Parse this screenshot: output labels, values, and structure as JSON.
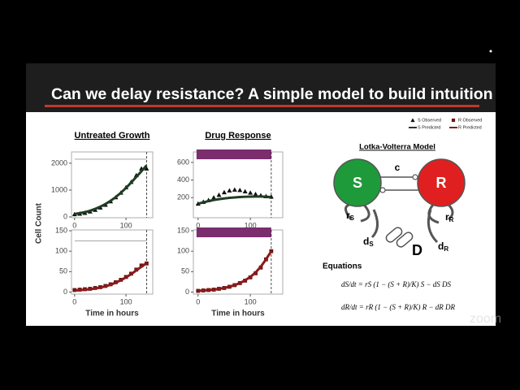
{
  "slide": {
    "title": "Can we delay resistance? A simple model to build intuition",
    "y_axis_label": "Cell Count",
    "watermark": "zoom"
  },
  "legend": {
    "items": [
      {
        "label": "S Observed",
        "color": "#111111",
        "marker": "triangle"
      },
      {
        "label": "R Observed",
        "color": "#6b1414",
        "marker": "square"
      },
      {
        "label": "S Predicted",
        "color": "#1f3d24",
        "marker": "line"
      },
      {
        "label": "R Predicted",
        "color": "#8b1a1a",
        "marker": "line"
      }
    ]
  },
  "chart_data": [
    {
      "type": "line",
      "title": "Untreated Growth",
      "x": [
        0,
        10,
        20,
        30,
        40,
        50,
        60,
        70,
        80,
        90,
        100,
        110,
        120,
        130,
        140
      ],
      "xlim": [
        -6,
        152
      ],
      "xticks": [
        0,
        100
      ],
      "ylim": [
        -30,
        2420
      ],
      "yticks": [
        0,
        1000,
        2000
      ],
      "vline": 140,
      "hline": 2150,
      "series": [
        {
          "color": "#111111",
          "marker": "triangle",
          "values": [
            100,
            120,
            150,
            200,
            260,
            350,
            450,
            580,
            730,
            900,
            1100,
            1300,
            1550,
            1800,
            1800
          ]
        },
        {
          "color": "#1f3d24",
          "marker": "line",
          "values": [
            110,
            140,
            180,
            230,
            300,
            380,
            480,
            600,
            740,
            900,
            1080,
            1280,
            1490,
            1700,
            1920
          ]
        }
      ]
    },
    {
      "type": "line",
      "title": "Drug Response",
      "x": [
        0,
        10,
        20,
        30,
        40,
        50,
        60,
        70,
        80,
        90,
        100,
        110,
        120,
        130,
        140
      ],
      "xlim": [
        -9,
        162
      ],
      "xticks": [
        0,
        100
      ],
      "ylim": [
        -30,
        720
      ],
      "yticks": [
        200,
        400,
        600
      ],
      "vline": 140,
      "band": {
        "x": [
          -3,
          140
        ],
        "color": "#7b2d6e"
      },
      "series": [
        {
          "color": "#111111",
          "marker": "triangle",
          "values": [
            130,
            150,
            170,
            200,
            230,
            260,
            280,
            290,
            285,
            270,
            255,
            240,
            225,
            215,
            210
          ]
        },
        {
          "color": "#1f3d24",
          "marker": "line",
          "values": [
            130,
            145,
            160,
            172,
            182,
            190,
            197,
            202,
            206,
            209,
            211,
            212,
            212,
            210,
            206
          ]
        }
      ]
    },
    {
      "type": "line",
      "xlabel": "Time in hours",
      "x": [
        0,
        10,
        20,
        30,
        40,
        50,
        60,
        70,
        80,
        90,
        100,
        110,
        120,
        130,
        140
      ],
      "xlim": [
        -6,
        152
      ],
      "xticks": [
        0,
        100
      ],
      "ylim": [
        -5,
        152
      ],
      "yticks": [
        0,
        50,
        100,
        150
      ],
      "vline": 140,
      "hline": 125,
      "series": [
        {
          "color": "#6b1414",
          "marker": "square",
          "values": [
            5,
            6,
            7,
            8,
            10,
            12,
            15,
            19,
            24,
            30,
            37,
            45,
            55,
            65,
            70
          ]
        },
        {
          "color": "#8b1a1a",
          "marker": "line",
          "values": [
            4,
            5,
            6,
            7,
            9,
            11,
            14,
            18,
            23,
            29,
            36,
            44,
            53,
            62,
            71
          ]
        }
      ]
    },
    {
      "type": "line",
      "xlabel": "Time in hours",
      "x": [
        0,
        10,
        20,
        30,
        40,
        50,
        60,
        70,
        80,
        90,
        100,
        110,
        120,
        130,
        140
      ],
      "xlim": [
        -9,
        162
      ],
      "xticks": [
        0,
        100
      ],
      "ylim": [
        -5,
        152
      ],
      "yticks": [
        0,
        50,
        100,
        150
      ],
      "vline": 140,
      "band": {
        "x": [
          -3,
          140
        ],
        "color": "#7b2d6e"
      },
      "series": [
        {
          "color": "#6b1414",
          "marker": "square",
          "values": [
            3,
            4,
            5,
            6,
            8,
            10,
            13,
            17,
            22,
            28,
            36,
            46,
            60,
            80,
            100
          ]
        },
        {
          "color": "#8b1a1a",
          "marker": "line",
          "values": [
            3,
            4,
            5,
            6,
            8,
            10,
            13,
            17,
            22,
            29,
            37,
            48,
            62,
            80,
            100
          ]
        }
      ]
    }
  ],
  "diagram": {
    "title": "Lotka-Volterra Model",
    "nodes": [
      {
        "label": "S"
      },
      {
        "label": "R"
      }
    ],
    "labels": {
      "c": "c",
      "rS": "r",
      "rS_sub": "S",
      "rR": "r",
      "rR_sub": "R",
      "dS": "d",
      "dS_sub": "S",
      "dR": "d",
      "dR_sub": "R",
      "drug": "D"
    }
  },
  "equations": {
    "title": "Equations",
    "items": [
      "dS/dt = rS (1 − (S + R)/K) S − dS DS",
      "dR/dt = rR (1 − (S + R)/K) R − dR DR"
    ]
  }
}
